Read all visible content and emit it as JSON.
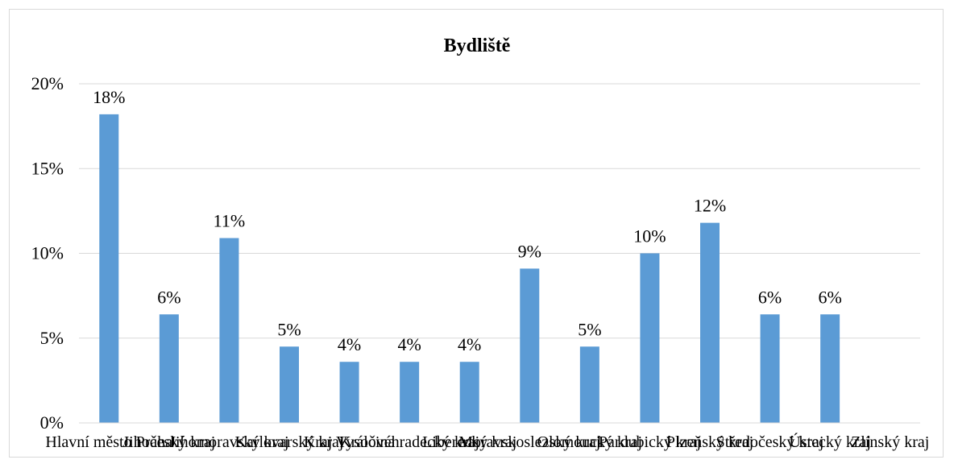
{
  "chart_data": {
    "type": "bar",
    "title": "Bydliště",
    "xlabel": "",
    "ylabel": "",
    "categories": [
      "Hlavní město Praha",
      "Jihočeský kraj",
      "Jihomoravský kraj",
      "Karlovarský kraj",
      "Kraj Vysočina",
      "Královéhradecký kraj",
      "Liberecký kraj",
      "Moravskoslezský kraj",
      "Olomoucký kraj",
      "Pardubický kraj",
      "Plzeňský kraj",
      "Středočeský kraj",
      "Ústecký kraj",
      "Zlínský kraj"
    ],
    "values": [
      0.182,
      0.064,
      0.109,
      0.045,
      0.036,
      0.036,
      0.036,
      0.091,
      0.045,
      0.1,
      0.118,
      0.064,
      0.064,
      0.0
    ],
    "data_labels": [
      "18%",
      "6%",
      "11%",
      "5%",
      "4%",
      "4%",
      "4%",
      "9%",
      "5%",
      "10%",
      "12%",
      "6%",
      "6%",
      ""
    ],
    "y_ticks": [
      "0%",
      "5%",
      "10%",
      "15%",
      "20%"
    ],
    "ylim": [
      0,
      0.2
    ],
    "grid": true,
    "legend": "none",
    "bar_color": "#5b9bd5",
    "grid_color": "#d9d9d9"
  }
}
